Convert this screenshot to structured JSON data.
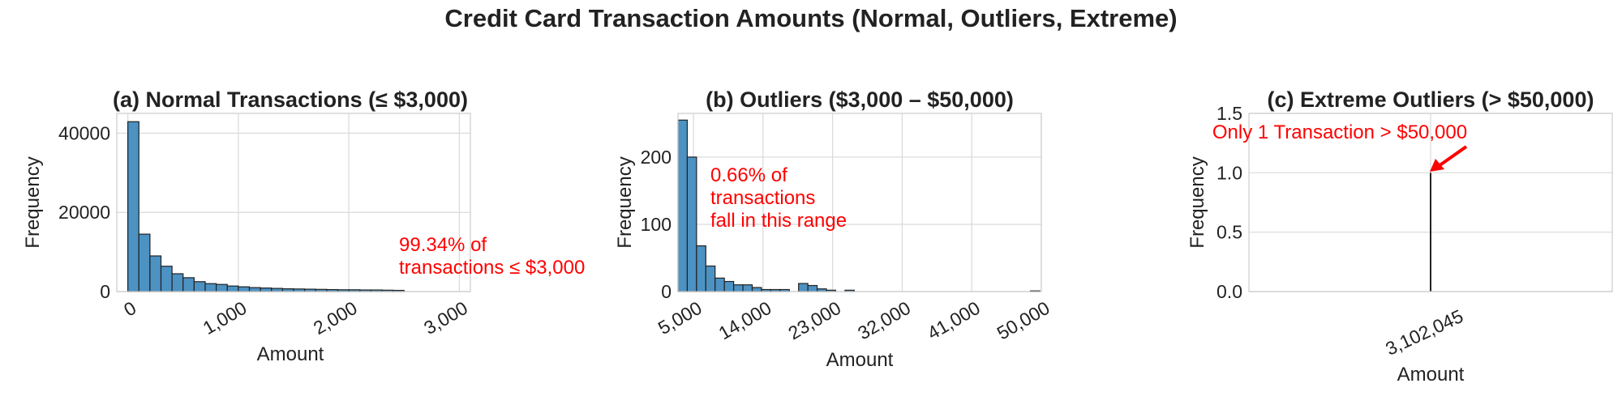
{
  "suptitle": "Credit Card Transaction Amounts (Normal, Outliers, Extreme)",
  "colors": {
    "bar": "#4c92c3",
    "edge": "#222222",
    "annotation": "#ff0000",
    "grid": "#d9d9d9"
  },
  "chart_data": [
    {
      "type": "bar",
      "title": "(a) Normal Transactions (≤ $3,000)",
      "xlabel": "Amount",
      "ylabel": "Frequency",
      "xlim": [
        -100,
        3100
      ],
      "ylim": [
        0,
        45000
      ],
      "xticks": [
        0,
        1000,
        2000,
        3000
      ],
      "xtick_labels": [
        "0",
        "1,000",
        "2,000",
        "3,000"
      ],
      "yticks": [
        0,
        20000,
        40000
      ],
      "ytick_labels": [
        "0",
        "20000",
        "40000"
      ],
      "grid": true,
      "bin_start": 0,
      "bin_width": 100,
      "values": [
        42900,
        14500,
        9000,
        6400,
        4500,
        3500,
        2500,
        2000,
        1800,
        1400,
        1200,
        1000,
        900,
        800,
        700,
        650,
        600,
        550,
        500,
        450,
        450,
        400,
        400,
        350,
        300,
        0,
        0,
        0,
        0,
        0
      ],
      "annotation": {
        "text_lines": [
          "99.34% of",
          "transactions ≤ $3,000"
        ]
      }
    },
    {
      "type": "bar",
      "title": "(b) Outliers ($3,000 – $50,000)",
      "xlabel": "Amount",
      "ylabel": "Frequency",
      "xlim": [
        3000,
        50000
      ],
      "ylim": [
        0,
        265
      ],
      "xticks": [
        5000,
        14000,
        23000,
        32000,
        41000,
        50000
      ],
      "xtick_labels": [
        "5,000",
        "14,000",
        "23,000",
        "32,000",
        "41,000",
        "50,000"
      ],
      "yticks": [
        0,
        100,
        200
      ],
      "ytick_labels": [
        "0",
        "100",
        "200"
      ],
      "grid": true,
      "bin_start": 3000,
      "bin_width": 1200,
      "values": [
        255,
        200,
        68,
        38,
        20,
        15,
        10,
        10,
        6,
        3,
        3,
        3,
        0,
        12,
        9,
        4,
        2,
        0,
        2,
        0,
        0,
        0,
        0,
        0,
        0,
        0,
        0,
        0,
        0,
        0,
        0,
        0,
        0,
        0,
        0,
        0,
        0,
        0,
        1
      ],
      "annotation": {
        "text_lines": [
          "0.66% of",
          "transactions",
          "fall in this range"
        ]
      }
    },
    {
      "type": "bar",
      "title": "(c) Extreme Outliers (> $50,000)",
      "xlabel": "Amount",
      "ylabel": "Frequency",
      "ylim": [
        0,
        1.5
      ],
      "yticks": [
        0,
        0.5,
        1.0,
        1.5
      ],
      "ytick_labels": [
        "0.0",
        "0.5",
        "1.0",
        "1.5"
      ],
      "xtick_labels": [
        "3,102,045"
      ],
      "grid": true,
      "categories": [
        "3,102,045"
      ],
      "values": [
        1
      ],
      "annotation": {
        "text_lines": [
          "Only 1 Transaction > $50,000"
        ]
      }
    }
  ]
}
